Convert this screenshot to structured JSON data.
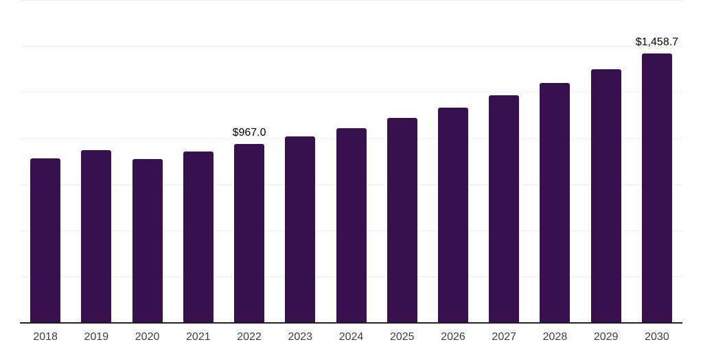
{
  "chart_data": {
    "type": "bar",
    "categories": [
      "2018",
      "2019",
      "2020",
      "2021",
      "2022",
      "2023",
      "2024",
      "2025",
      "2026",
      "2027",
      "2028",
      "2029",
      "2030"
    ],
    "values": [
      890.6,
      933.2,
      887.4,
      925.8,
      967.0,
      1009.9,
      1055.6,
      1111.3,
      1167.0,
      1231.6,
      1299.5,
      1373.8,
      1458.7
    ],
    "data_labels": [
      {
        "index": 4,
        "text": "$967.0"
      },
      {
        "index": 12,
        "text": "$1,458.7"
      }
    ],
    "ylim": [
      0,
      1750
    ],
    "gridline_values": [
      250,
      500,
      750,
      1000,
      1250,
      1500,
      1750
    ],
    "legend": "none",
    "y_axis_labels": "none",
    "colors": {
      "bar": "#36114E",
      "gridline": "#ededed",
      "axis_line": "#222222",
      "tick_label": "#3d3d3d",
      "data_label": "#000000",
      "background": "#ffffff"
    }
  }
}
